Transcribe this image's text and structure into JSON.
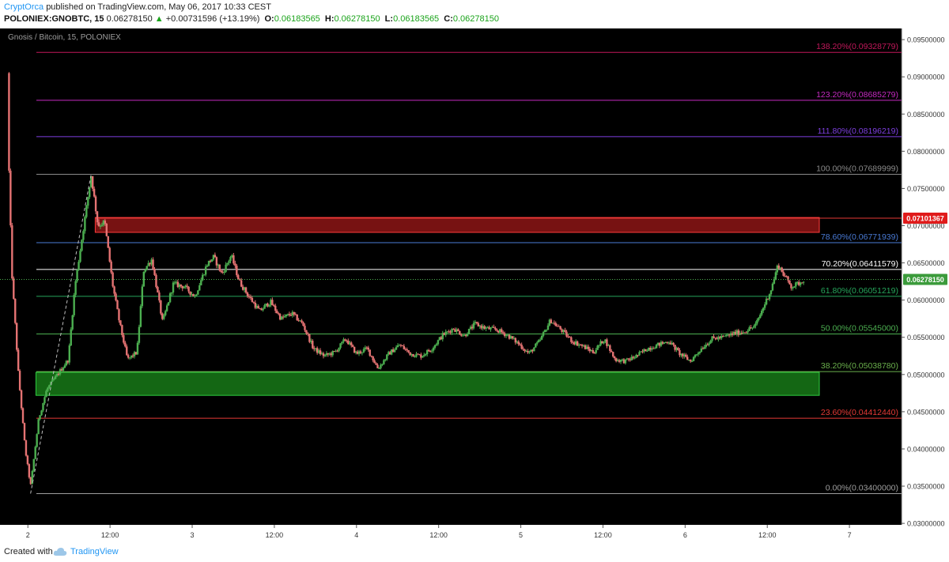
{
  "header": {
    "author": "CryptOrca",
    "published_text": "published on TradingView.com, May 06, 2017 10:33 CEST",
    "symbol": "POLONIEX:GNOBTC, 15",
    "last_price": "0.06278150",
    "change_arrow": "▲",
    "change": "+0.00731596 (+13.19%)",
    "ohlc": [
      {
        "label": "O:",
        "value": "0.06183565"
      },
      {
        "label": "H:",
        "value": "0.06278150"
      },
      {
        "label": "L:",
        "value": "0.06183565"
      },
      {
        "label": "C:",
        "value": "0.06278150"
      }
    ]
  },
  "footer": {
    "created_with": "Created with",
    "brand": "TradingView"
  },
  "colors": {
    "background": "#000000",
    "up_candle": "#4caf50",
    "down_candle": "#e57373",
    "red_zone": "#b71c1c",
    "green_zone": "#1b8a1b",
    "price_badge": "#3b9b3b",
    "resistance_badge": "#e01b1b"
  },
  "chart_data": {
    "type": "candlestick",
    "title": "Gnosis / Bitcoin, 15, POLONIEX",
    "ylim": [
      0.0298,
      0.0965
    ],
    "y_ticks": [
      "0.09500000",
      "0.09000000",
      "0.08500000",
      "0.08000000",
      "0.07500000",
      "0.07000000",
      "0.06500000",
      "0.06000000",
      "0.05500000",
      "0.05000000",
      "0.04500000",
      "0.04000000",
      "0.03500000",
      "0.03000000"
    ],
    "x_ticks": [
      "2",
      "12:00",
      "3",
      "12:00",
      "4",
      "12:00",
      "5",
      "12:00",
      "6",
      "12:00",
      "7"
    ],
    "fib_levels": [
      {
        "label": "138.20%(0.09328779)",
        "value": 0.09328779,
        "color": "#c2185b"
      },
      {
        "label": "123.20%(0.08685279)",
        "value": 0.08685279,
        "color": "#c62ac2"
      },
      {
        "label": "111.80%(0.08196219)",
        "value": 0.08196219,
        "color": "#7e3fe0"
      },
      {
        "label": "100.00%(0.07689999)",
        "value": 0.07689999,
        "color": "#8a8a8a"
      },
      {
        "label": "78.60%(0.06771939)",
        "value": 0.06771939,
        "color": "#4a7bd6"
      },
      {
        "label": "70.20%(0.06411579)",
        "value": 0.06411579,
        "color": "#ffffff"
      },
      {
        "label": "61.80%(0.06051219)",
        "value": 0.06051219,
        "color": "#26a65b"
      },
      {
        "label": "50.00%(0.05545000)",
        "value": 0.05545,
        "color": "#4caf50"
      },
      {
        "label": "38.20%(0.05038780)",
        "value": 0.0503878,
        "color": "#6ab04c"
      },
      {
        "label": "23.60%(0.04412440)",
        "value": 0.0441244,
        "color": "#e53935"
      },
      {
        "label": "0.00%(0.03400000)",
        "value": 0.034,
        "color": "#9e9e9e"
      }
    ],
    "zones": [
      {
        "name": "resistance-zone",
        "y_from": 0.0691,
        "y_to": 0.0711
      },
      {
        "name": "support-zone",
        "y_from": 0.0472,
        "y_to": 0.0503
      }
    ],
    "price_marks": [
      {
        "name": "resistance-price",
        "label": "0.07101367",
        "value": 0.07101367
      },
      {
        "name": "last-price",
        "label": "0.06278150",
        "value": 0.0627815
      }
    ],
    "price_path": [
      [
        0.0,
        0.0905
      ],
      [
        0.4,
        0.064
      ],
      [
        0.9,
        0.05
      ],
      [
        1.4,
        0.04
      ],
      [
        1.8,
        0.035
      ],
      [
        2.4,
        0.044
      ],
      [
        3.0,
        0.048
      ],
      [
        3.8,
        0.05
      ],
      [
        4.6,
        0.052
      ],
      [
        5.1,
        0.062
      ],
      [
        5.9,
        0.0718
      ],
      [
        6.3,
        0.0768
      ],
      [
        6.8,
        0.07
      ],
      [
        7.3,
        0.0705
      ],
      [
        7.9,
        0.062
      ],
      [
        8.4,
        0.057
      ],
      [
        9.0,
        0.052
      ],
      [
        9.7,
        0.053
      ],
      [
        10.2,
        0.064
      ],
      [
        10.8,
        0.0655
      ],
      [
        11.6,
        0.057
      ],
      [
        12.4,
        0.0622
      ],
      [
        13.2,
        0.0618
      ],
      [
        14.0,
        0.0605
      ],
      [
        14.9,
        0.0648
      ],
      [
        15.4,
        0.0658
      ],
      [
        16.0,
        0.0635
      ],
      [
        16.7,
        0.066
      ],
      [
        17.3,
        0.0625
      ],
      [
        18.0,
        0.0605
      ],
      [
        18.8,
        0.0585
      ],
      [
        19.6,
        0.0598
      ],
      [
        20.4,
        0.0575
      ],
      [
        21.2,
        0.0582
      ],
      [
        22.0,
        0.0568
      ],
      [
        22.8,
        0.0535
      ],
      [
        23.6,
        0.0525
      ],
      [
        24.4,
        0.053
      ],
      [
        25.2,
        0.0548
      ],
      [
        26.0,
        0.0528
      ],
      [
        26.8,
        0.0535
      ],
      [
        27.6,
        0.0508
      ],
      [
        28.4,
        0.0528
      ],
      [
        29.2,
        0.054
      ],
      [
        30.0,
        0.0528
      ],
      [
        30.8,
        0.0525
      ],
      [
        31.6,
        0.0535
      ],
      [
        32.4,
        0.0553
      ],
      [
        33.2,
        0.0562
      ],
      [
        34.0,
        0.0552
      ],
      [
        34.8,
        0.0568
      ],
      [
        35.6,
        0.0562
      ],
      [
        36.4,
        0.056
      ],
      [
        37.2,
        0.0553
      ],
      [
        38.0,
        0.0542
      ],
      [
        38.8,
        0.0528
      ],
      [
        39.6,
        0.0545
      ],
      [
        40.4,
        0.0573
      ],
      [
        41.2,
        0.056
      ],
      [
        42.0,
        0.0545
      ],
      [
        42.8,
        0.0538
      ],
      [
        43.6,
        0.053
      ],
      [
        44.4,
        0.0548
      ],
      [
        45.2,
        0.052
      ],
      [
        46.0,
        0.0518
      ],
      [
        46.8,
        0.0525
      ],
      [
        47.6,
        0.0535
      ],
      [
        48.4,
        0.054
      ],
      [
        49.2,
        0.0545
      ],
      [
        50.0,
        0.0528
      ],
      [
        50.8,
        0.0518
      ],
      [
        51.6,
        0.0535
      ],
      [
        52.4,
        0.0548
      ],
      [
        53.2,
        0.055
      ],
      [
        54.0,
        0.0555
      ],
      [
        54.8,
        0.0558
      ],
      [
        55.6,
        0.0565
      ],
      [
        56.2,
        0.059
      ],
      [
        56.8,
        0.0615
      ],
      [
        57.3,
        0.0648
      ],
      [
        57.8,
        0.0632
      ],
      [
        58.3,
        0.0618
      ],
      [
        58.8,
        0.0622
      ],
      [
        59.2,
        0.0628
      ]
    ],
    "x_range": [
      0,
      66
    ],
    "x_tick_positions": [
      1.6,
      7.7,
      13.8,
      19.9,
      26.0,
      32.1,
      38.2,
      44.3,
      50.4,
      56.5,
      62.6
    ]
  }
}
